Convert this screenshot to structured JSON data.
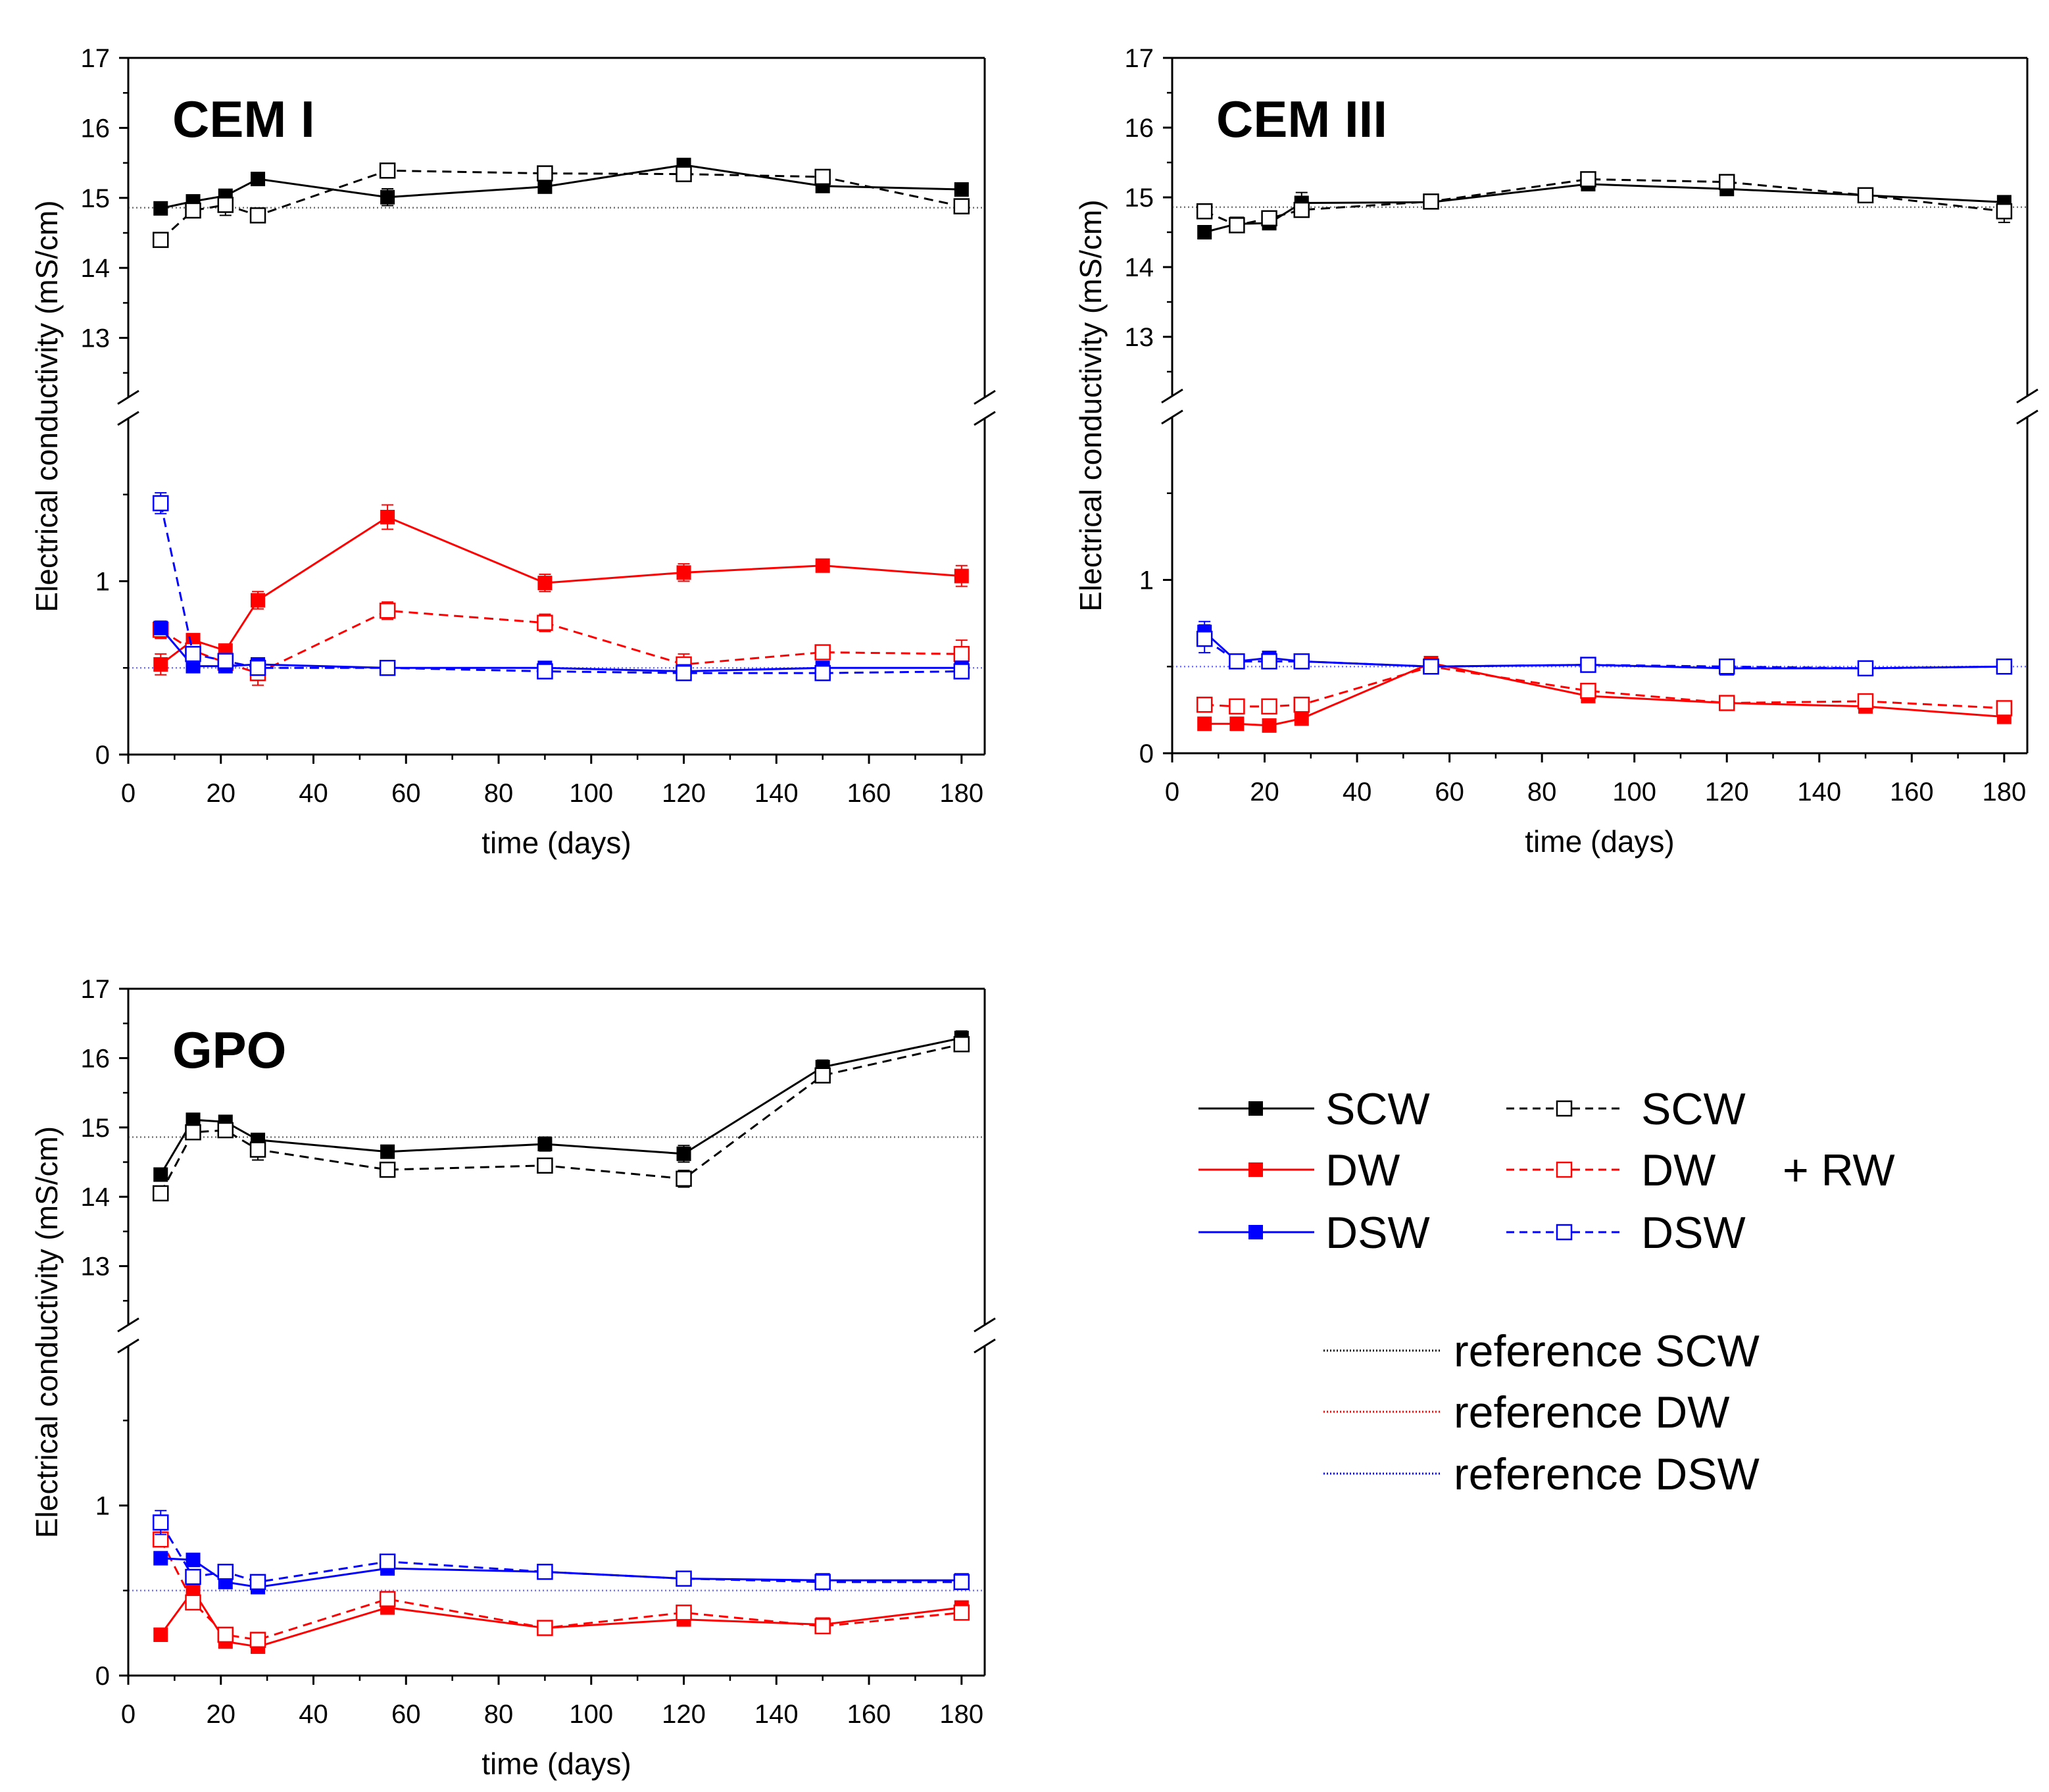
{
  "x_axis": {
    "label": "time (days)",
    "ticks": [
      0,
      20,
      40,
      60,
      80,
      100,
      120,
      140,
      160,
      180
    ]
  },
  "y_axis": {
    "label": "Electrical conductivity (mS/cm)",
    "upper_ticks": [
      13,
      14,
      15,
      16,
      17
    ],
    "lower_ticks": [
      0,
      1
    ]
  },
  "colors": {
    "SCW": "#000000",
    "DW": "#ff0000",
    "DSW": "#0000ff"
  },
  "chart_data": [
    {
      "type": "line",
      "title": "CEM I",
      "xlabel": "time (days)",
      "ylabel": "Electrical conductivity (mS/cm)",
      "xlim": [
        0,
        185
      ],
      "ylim_lower": [
        0,
        2
      ],
      "ylim_upper": [
        12,
        17
      ],
      "reference": {
        "SCW": 14.86,
        "DW": 0.0,
        "DSW": 0.5
      },
      "series": [
        {
          "name": "SCW",
          "variant": "solid",
          "x": [
            7,
            14,
            21,
            28,
            56,
            90,
            120,
            150,
            180
          ],
          "y": [
            14.85,
            14.95,
            15.03,
            15.27,
            15.01,
            15.16,
            15.47,
            15.17,
            15.12
          ],
          "err": [
            0.05,
            0.05,
            0.06,
            0.05,
            0.12,
            0.06,
            0.06,
            0.06,
            0.06
          ]
        },
        {
          "name": "SCW",
          "variant": "rw",
          "x": [
            7,
            14,
            21,
            28,
            56,
            90,
            120,
            150,
            180
          ],
          "y": [
            14.4,
            14.82,
            14.9,
            14.75,
            15.39,
            15.35,
            15.34,
            15.3,
            14.88
          ],
          "err": [
            0.04,
            0.1,
            0.15,
            0.08,
            0.05,
            0.06,
            0.06,
            0.06,
            0.08
          ]
        },
        {
          "name": "DW",
          "variant": "solid",
          "x": [
            7,
            14,
            21,
            28,
            56,
            90,
            120,
            150,
            180
          ],
          "y": [
            0.52,
            0.66,
            0.6,
            0.89,
            1.37,
            0.99,
            1.05,
            1.09,
            1.03
          ],
          "err": [
            0.06,
            0.03,
            0.03,
            0.05,
            0.07,
            0.05,
            0.05,
            0.03,
            0.06
          ]
        },
        {
          "name": "DW",
          "variant": "rw",
          "x": [
            7,
            14,
            21,
            28,
            56,
            90,
            120,
            150,
            180
          ],
          "y": [
            0.72,
            0.6,
            0.53,
            0.47,
            0.83,
            0.76,
            0.52,
            0.59,
            0.58
          ],
          "err": [
            0.05,
            0.04,
            0.05,
            0.07,
            0.05,
            0.05,
            0.06,
            0.04,
            0.08
          ]
        },
        {
          "name": "DSW",
          "variant": "solid",
          "x": [
            7,
            14,
            21,
            28,
            56,
            90,
            120,
            150,
            180
          ],
          "y": [
            0.73,
            0.51,
            0.51,
            0.52,
            0.5,
            0.5,
            0.48,
            0.5,
            0.5
          ],
          "err": [
            0.03,
            0.02,
            0.02,
            0.02,
            0.02,
            0.02,
            0.02,
            0.02,
            0.02
          ]
        },
        {
          "name": "DSW",
          "variant": "rw",
          "x": [
            7,
            14,
            21,
            28,
            56,
            90,
            120,
            150,
            180
          ],
          "y": [
            1.45,
            0.58,
            0.54,
            0.5,
            0.5,
            0.48,
            0.47,
            0.47,
            0.48
          ],
          "err": [
            0.06,
            0.03,
            0.03,
            0.03,
            0.02,
            0.02,
            0.02,
            0.02,
            0.02
          ]
        }
      ]
    },
    {
      "type": "line",
      "title": "CEM III",
      "xlabel": "time (days)",
      "ylabel": "Electrical conductivity (mS/cm)",
      "xlim": [
        0,
        185
      ],
      "ylim_lower": [
        0,
        2
      ],
      "ylim_upper": [
        12,
        17
      ],
      "reference": {
        "SCW": 14.86,
        "DW": 0.0,
        "DSW": 0.5
      },
      "series": [
        {
          "name": "SCW",
          "variant": "solid",
          "x": [
            7,
            14,
            21,
            28,
            56,
            90,
            120,
            150,
            180
          ],
          "y": [
            14.5,
            14.62,
            14.63,
            14.92,
            14.93,
            15.19,
            15.12,
            15.03,
            14.93
          ],
          "err": [
            0.04,
            0.04,
            0.06,
            0.15,
            0.05,
            0.06,
            0.05,
            0.05,
            0.05
          ]
        },
        {
          "name": "SCW",
          "variant": "rw",
          "x": [
            7,
            14,
            21,
            28,
            56,
            90,
            120,
            150,
            180
          ],
          "y": [
            14.8,
            14.6,
            14.7,
            14.82,
            14.94,
            15.26,
            15.22,
            15.03,
            14.8
          ],
          "err": [
            0.05,
            0.05,
            0.1,
            0.1,
            0.05,
            0.07,
            0.05,
            0.05,
            0.16
          ]
        },
        {
          "name": "DW",
          "variant": "solid",
          "x": [
            7,
            14,
            21,
            28,
            56,
            90,
            120,
            150,
            180
          ],
          "y": [
            0.17,
            0.17,
            0.16,
            0.2,
            0.52,
            0.33,
            0.29,
            0.27,
            0.21
          ],
          "err": [
            0.02,
            0.02,
            0.02,
            0.02,
            0.03,
            0.02,
            0.02,
            0.02,
            0.02
          ]
        },
        {
          "name": "DW",
          "variant": "rw",
          "x": [
            7,
            14,
            21,
            28,
            56,
            90,
            120,
            150,
            180
          ],
          "y": [
            0.28,
            0.27,
            0.27,
            0.28,
            0.5,
            0.36,
            0.29,
            0.3,
            0.26
          ],
          "err": [
            0.02,
            0.02,
            0.02,
            0.02,
            0.03,
            0.03,
            0.02,
            0.02,
            0.02
          ]
        },
        {
          "name": "DSW",
          "variant": "solid",
          "x": [
            7,
            14,
            21,
            28,
            56,
            90,
            120,
            150,
            180
          ],
          "y": [
            0.7,
            0.53,
            0.55,
            0.53,
            0.5,
            0.51,
            0.49,
            0.49,
            0.5
          ],
          "err": [
            0.06,
            0.03,
            0.03,
            0.02,
            0.02,
            0.02,
            0.02,
            0.02,
            0.02
          ]
        },
        {
          "name": "DSW",
          "variant": "rw",
          "x": [
            7,
            14,
            21,
            28,
            56,
            90,
            120,
            150,
            180
          ],
          "y": [
            0.66,
            0.53,
            0.53,
            0.53,
            0.5,
            0.51,
            0.5,
            0.49,
            0.5
          ],
          "err": [
            0.08,
            0.03,
            0.03,
            0.02,
            0.02,
            0.02,
            0.02,
            0.02,
            0.02
          ]
        }
      ]
    },
    {
      "type": "line",
      "title": "GPO",
      "xlabel": "time (days)",
      "ylabel": "Electrical conductivity (mS/cm)",
      "xlim": [
        0,
        185
      ],
      "ylim_lower": [
        0,
        2
      ],
      "ylim_upper": [
        12,
        17
      ],
      "reference": {
        "SCW": 14.86,
        "DW": 0.0,
        "DSW": 0.5
      },
      "series": [
        {
          "name": "SCW",
          "variant": "solid",
          "x": [
            7,
            14,
            21,
            28,
            56,
            90,
            120,
            150,
            180
          ],
          "y": [
            14.32,
            15.11,
            15.08,
            14.82,
            14.65,
            14.76,
            14.62,
            15.87,
            16.29
          ],
          "err": [
            0.06,
            0.04,
            0.05,
            0.06,
            0.06,
            0.1,
            0.12,
            0.1,
            0.1
          ]
        },
        {
          "name": "SCW",
          "variant": "rw",
          "x": [
            7,
            14,
            21,
            28,
            56,
            90,
            120,
            150,
            180
          ],
          "y": [
            14.05,
            14.93,
            14.96,
            14.68,
            14.39,
            14.45,
            14.26,
            15.75,
            16.2
          ],
          "err": [
            0.08,
            0.06,
            0.06,
            0.15,
            0.07,
            0.08,
            0.12,
            0.06,
            0.08
          ]
        },
        {
          "name": "DW",
          "variant": "solid",
          "x": [
            7,
            14,
            21,
            28,
            56,
            90,
            120,
            150,
            180
          ],
          "y": [
            0.24,
            0.5,
            0.2,
            0.17,
            0.4,
            0.28,
            0.33,
            0.3,
            0.4
          ],
          "err": [
            0.02,
            0.03,
            0.02,
            0.02,
            0.03,
            0.02,
            0.02,
            0.02,
            0.02
          ]
        },
        {
          "name": "DW",
          "variant": "rw",
          "x": [
            7,
            14,
            21,
            28,
            56,
            90,
            120,
            150,
            180
          ],
          "y": [
            0.8,
            0.43,
            0.24,
            0.21,
            0.45,
            0.28,
            0.37,
            0.29,
            0.37
          ],
          "err": [
            0.04,
            0.03,
            0.03,
            0.02,
            0.03,
            0.02,
            0.03,
            0.02,
            0.02
          ]
        },
        {
          "name": "DSW",
          "variant": "solid",
          "x": [
            7,
            14,
            21,
            28,
            56,
            90,
            120,
            150,
            180
          ],
          "y": [
            0.69,
            0.68,
            0.55,
            0.52,
            0.63,
            0.61,
            0.57,
            0.56,
            0.56
          ],
          "err": [
            0.02,
            0.02,
            0.02,
            0.02,
            0.02,
            0.02,
            0.02,
            0.02,
            0.02
          ]
        },
        {
          "name": "DSW",
          "variant": "rw",
          "x": [
            7,
            14,
            21,
            28,
            56,
            90,
            120,
            150,
            180
          ],
          "y": [
            0.9,
            0.58,
            0.61,
            0.55,
            0.67,
            0.61,
            0.57,
            0.55,
            0.55
          ],
          "err": [
            0.07,
            0.04,
            0.04,
            0.03,
            0.03,
            0.03,
            0.02,
            0.02,
            0.02
          ]
        }
      ]
    }
  ],
  "legend": {
    "series": [
      {
        "name": "SCW",
        "label": "SCW",
        "rw_label": "SCW"
      },
      {
        "name": "DW",
        "label": "DW",
        "rw_label": "DW"
      },
      {
        "name": "DSW",
        "label": "DSW",
        "rw_label": "DSW"
      }
    ],
    "rw_text": "+ RW",
    "references": [
      {
        "name": "SCW",
        "label": "reference SCW"
      },
      {
        "name": "DW",
        "label": "reference DW"
      },
      {
        "name": "DSW",
        "label": "reference DSW"
      }
    ]
  }
}
